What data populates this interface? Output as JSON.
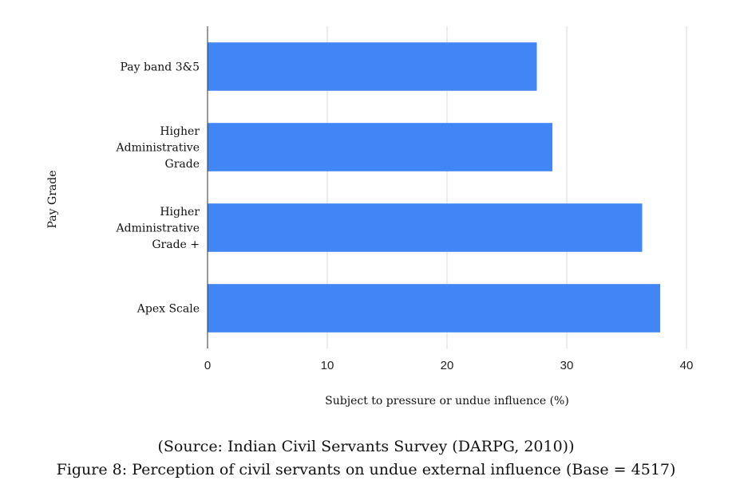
{
  "chart_data": {
    "type": "bar",
    "orientation": "horizontal",
    "categories": [
      [
        "Pay band 3&5"
      ],
      [
        "Higher",
        "Administrative",
        "Grade"
      ],
      [
        "Higher",
        "Administrative",
        "Grade +"
      ],
      [
        "Apex Scale"
      ]
    ],
    "values": [
      27.5,
      28.8,
      36.3,
      37.8
    ],
    "xlabel": "Subject to pressure or undue influence (%)",
    "ylabel": "Pay Grade",
    "xlim": [
      0,
      40
    ],
    "xticks": [
      "0",
      "10",
      "20",
      "30",
      "40"
    ],
    "grid": true,
    "legend": "none",
    "bar_color": "#4285F4"
  },
  "caption": {
    "source": "(Source: Indian Civil Servants Survey (DARPG, 2010))",
    "figure": "Figure 8: Perception of civil servants on undue external influence (Base = 4517)"
  }
}
